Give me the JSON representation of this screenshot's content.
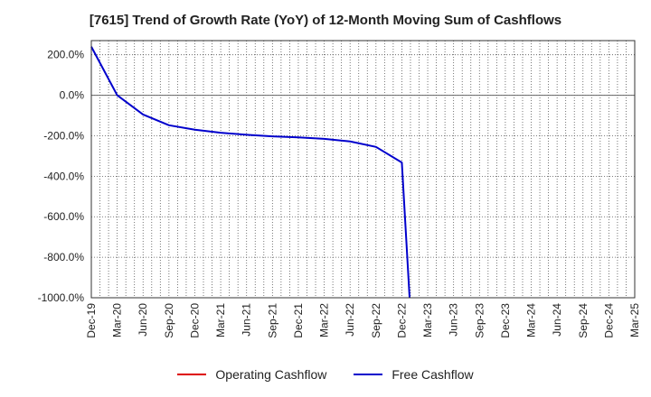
{
  "chart_data": {
    "type": "line",
    "title": "[7615]  Trend of Growth Rate (YoY) of 12-Month Moving Sum of Cashflows",
    "xlabel": "",
    "ylabel": "",
    "x_categories": [
      "Dec-19",
      "Mar-20",
      "Jun-20",
      "Sep-20",
      "Dec-20",
      "Mar-21",
      "Jun-21",
      "Sep-21",
      "Dec-21",
      "Mar-22",
      "Jun-22",
      "Sep-22",
      "Dec-22",
      "Mar-23",
      "Jun-23",
      "Sep-23",
      "Dec-23",
      "Mar-24",
      "Jun-24",
      "Sep-24",
      "Dec-24",
      "Mar-25"
    ],
    "y_ticks": [
      200,
      0,
      -200,
      -400,
      -600,
      -800,
      -1000
    ],
    "y_tick_labels": [
      "200.0%",
      "0.0%",
      "-200.0%",
      "-400.0%",
      "-600.0%",
      "-800.0%",
      "-1000.0%"
    ],
    "ylim": [
      -1000,
      270
    ],
    "grid": true,
    "legend_position": "bottom",
    "series": [
      {
        "name": "Operating Cashflow",
        "color": "#dd0000",
        "points": []
      },
      {
        "name": "Free Cashflow",
        "color": "#0000cc",
        "points": [
          {
            "x": 0.0,
            "y": 240
          },
          {
            "x": 1.0,
            "y": 0
          },
          {
            "x": 2.0,
            "y": -95
          },
          {
            "x": 3.0,
            "y": -148
          },
          {
            "x": 4.0,
            "y": -170
          },
          {
            "x": 5.0,
            "y": -185
          },
          {
            "x": 6.0,
            "y": -195
          },
          {
            "x": 7.0,
            "y": -203
          },
          {
            "x": 8.0,
            "y": -208
          },
          {
            "x": 9.0,
            "y": -215
          },
          {
            "x": 10.0,
            "y": -228
          },
          {
            "x": 11.0,
            "y": -255
          },
          {
            "x": 12.0,
            "y": -332
          },
          {
            "x": 12.3,
            "y": -1000
          }
        ]
      }
    ]
  }
}
